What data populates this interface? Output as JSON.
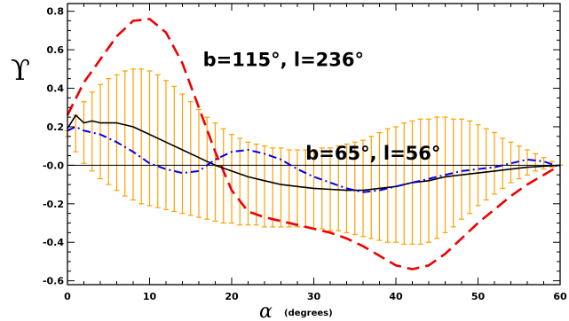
{
  "chart_data": {
    "type": "line",
    "ylabel": "ϒ",
    "xlabel": "α",
    "xlabel_unit": "(degrees)",
    "xlim": [
      0,
      60
    ],
    "ylim": [
      -0.62,
      0.84
    ],
    "xticks": [
      0,
      10,
      20,
      30,
      40,
      50,
      60
    ],
    "xtick_labels": [
      "0",
      "10",
      "20",
      "30",
      "40",
      "50",
      "60"
    ],
    "yticks": [
      -0.6,
      -0.4,
      -0.2,
      0.0,
      0.2,
      0.4,
      0.6,
      0.8
    ],
    "ytick_labels": [
      "-0.6",
      "-0.4",
      "-0.2",
      "-0.0",
      "0.2",
      "0.4",
      "0.6",
      "0.8"
    ],
    "zero_line": true,
    "grid": false,
    "annotations": [
      {
        "text": "b=115°, l=236°",
        "x": 16.5,
        "y": 0.515
      },
      {
        "text": "b=65°, l=56°",
        "x": 29.0,
        "y": 0.03
      }
    ],
    "series": [
      {
        "color": "#ee0000",
        "style": "dashed",
        "x": [
          0,
          2,
          4,
          6,
          8,
          10,
          12,
          14,
          16,
          18,
          20,
          22,
          24,
          26,
          28,
          30,
          32,
          34,
          36,
          38,
          40,
          42,
          44,
          46,
          48,
          50,
          52,
          54,
          56,
          58,
          60
        ],
        "y": [
          0.26,
          0.43,
          0.55,
          0.67,
          0.75,
          0.76,
          0.69,
          0.53,
          0.3,
          0.07,
          -0.13,
          -0.24,
          -0.27,
          -0.29,
          -0.31,
          -0.33,
          -0.35,
          -0.38,
          -0.42,
          -0.47,
          -0.52,
          -0.54,
          -0.52,
          -0.46,
          -0.38,
          -0.3,
          -0.23,
          -0.16,
          -0.1,
          -0.05,
          0.0
        ]
      },
      {
        "color": "#000000",
        "style": "solid",
        "x": [
          0,
          1,
          2,
          3,
          4,
          6,
          8,
          10,
          12,
          14,
          16,
          18,
          20,
          22,
          24,
          26,
          28,
          30,
          32,
          34,
          36,
          38,
          40,
          42,
          44,
          46,
          48,
          50,
          52,
          54,
          56,
          58,
          60
        ],
        "y": [
          0.19,
          0.26,
          0.22,
          0.23,
          0.22,
          0.22,
          0.2,
          0.16,
          0.12,
          0.08,
          0.04,
          0.0,
          -0.03,
          -0.06,
          -0.08,
          -0.1,
          -0.11,
          -0.12,
          -0.125,
          -0.13,
          -0.13,
          -0.12,
          -0.11,
          -0.09,
          -0.08,
          -0.06,
          -0.05,
          -0.04,
          -0.03,
          -0.02,
          -0.01,
          -0.005,
          0.0
        ]
      },
      {
        "color": "#0000ee",
        "style": "dashdot",
        "x": [
          0,
          1,
          2,
          4,
          6,
          8,
          10,
          12,
          14,
          16,
          18,
          20,
          22,
          24,
          26,
          28,
          30,
          32,
          34,
          36,
          38,
          40,
          42,
          44,
          46,
          48,
          50,
          52,
          54,
          56,
          58,
          60
        ],
        "y": [
          0.18,
          0.2,
          0.18,
          0.16,
          0.12,
          0.07,
          0.01,
          -0.02,
          -0.04,
          -0.03,
          0.03,
          0.07,
          0.08,
          0.06,
          0.03,
          -0.02,
          -0.06,
          -0.09,
          -0.12,
          -0.14,
          -0.13,
          -0.11,
          -0.09,
          -0.07,
          -0.05,
          -0.03,
          -0.02,
          -0.01,
          0.01,
          0.03,
          0.02,
          -0.01
        ]
      },
      {
        "color": "#ffa000",
        "style": "errorbars",
        "x": [
          0,
          1,
          2,
          3,
          4,
          5,
          6,
          7,
          8,
          9,
          10,
          11,
          12,
          13,
          14,
          15,
          16,
          17,
          18,
          19,
          20,
          21,
          22,
          23,
          24,
          25,
          26,
          27,
          28,
          29,
          30,
          31,
          32,
          33,
          34,
          35,
          36,
          37,
          38,
          39,
          40,
          41,
          42,
          43,
          44,
          45,
          46,
          47,
          48,
          49,
          50,
          51,
          52,
          53,
          54,
          55,
          56,
          57,
          58,
          59,
          60
        ],
        "y_upper": [
          0.15,
          0.26,
          0.33,
          0.38,
          0.42,
          0.45,
          0.47,
          0.49,
          0.5,
          0.5,
          0.49,
          0.47,
          0.44,
          0.41,
          0.37,
          0.33,
          0.29,
          0.25,
          0.22,
          0.19,
          0.16,
          0.14,
          0.12,
          0.11,
          0.1,
          0.09,
          0.09,
          0.08,
          0.08,
          0.08,
          0.08,
          0.09,
          0.09,
          0.1,
          0.11,
          0.12,
          0.13,
          0.15,
          0.17,
          0.19,
          0.2,
          0.22,
          0.23,
          0.24,
          0.24,
          0.25,
          0.25,
          0.24,
          0.24,
          0.23,
          0.21,
          0.19,
          0.17,
          0.14,
          0.12,
          0.1,
          0.08,
          0.06,
          0.04,
          0.02,
          0.0
        ],
        "y_lower": [
          0.18,
          0.07,
          0.01,
          -0.03,
          -0.07,
          -0.1,
          -0.13,
          -0.16,
          -0.18,
          -0.2,
          -0.21,
          -0.22,
          -0.23,
          -0.24,
          -0.25,
          -0.26,
          -0.27,
          -0.28,
          -0.29,
          -0.3,
          -0.3,
          -0.31,
          -0.31,
          -0.31,
          -0.32,
          -0.32,
          -0.32,
          -0.32,
          -0.32,
          -0.32,
          -0.33,
          -0.33,
          -0.34,
          -0.34,
          -0.35,
          -0.36,
          -0.37,
          -0.38,
          -0.39,
          -0.4,
          -0.4,
          -0.41,
          -0.41,
          -0.41,
          -0.4,
          -0.38,
          -0.35,
          -0.32,
          -0.28,
          -0.25,
          -0.21,
          -0.18,
          -0.15,
          -0.12,
          -0.09,
          -0.07,
          -0.05,
          -0.03,
          -0.02,
          -0.01,
          0.0
        ]
      }
    ]
  }
}
